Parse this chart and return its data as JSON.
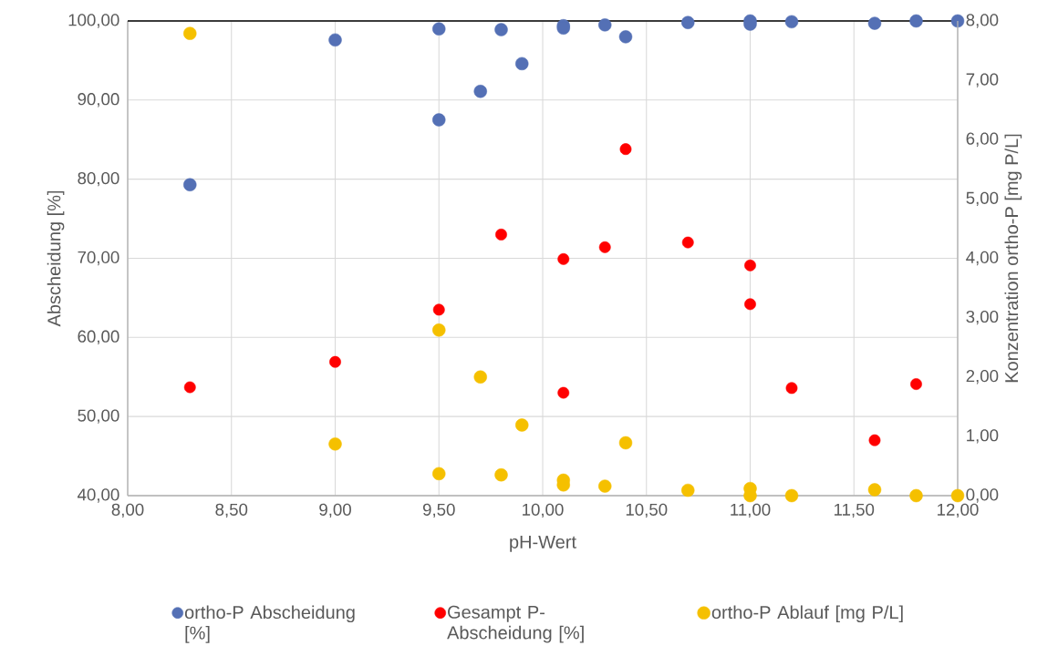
{
  "chart_data": {
    "type": "scatter",
    "xlabel": "pH-Wert",
    "ylabel": "Abscheidung [%]",
    "y2label": "Konzentration ortho-P [mg P/L]",
    "xlim": [
      8,
      12
    ],
    "ylim": [
      40,
      100
    ],
    "y2lim": [
      0,
      8
    ],
    "xticks": [
      {
        "value": 8,
        "label": "8,00"
      },
      {
        "value": 8.5,
        "label": "8,50"
      },
      {
        "value": 9,
        "label": "9,00"
      },
      {
        "value": 9.5,
        "label": "9,50"
      },
      {
        "value": 10,
        "label": "10,00"
      },
      {
        "value": 10.5,
        "label": "10,50"
      },
      {
        "value": 11,
        "label": "11,00"
      },
      {
        "value": 11.5,
        "label": "11,50"
      },
      {
        "value": 12,
        "label": "12,00"
      }
    ],
    "yticks": [
      {
        "value": 40,
        "label": "40,00"
      },
      {
        "value": 50,
        "label": "50,00"
      },
      {
        "value": 60,
        "label": "60,00"
      },
      {
        "value": 70,
        "label": "70,00"
      },
      {
        "value": 80,
        "label": "80,00"
      },
      {
        "value": 90,
        "label": "90,00"
      },
      {
        "value": 100,
        "label": "100,00"
      }
    ],
    "y2ticks": [
      {
        "value": 0,
        "label": "0,00"
      },
      {
        "value": 1,
        "label": "1,00"
      },
      {
        "value": 2,
        "label": "2,00"
      },
      {
        "value": 3,
        "label": "3,00"
      },
      {
        "value": 4,
        "label": "4,00"
      },
      {
        "value": 5,
        "label": "5,00"
      },
      {
        "value": 6,
        "label": "6,00"
      },
      {
        "value": 7,
        "label": "7,00"
      },
      {
        "value": 8,
        "label": "8,00"
      }
    ],
    "grid": true,
    "legend": "bottom",
    "marker": "circle",
    "series": [
      {
        "name": "ortho-P Abscheidung [%]",
        "color": "#5470b5",
        "x": [
          8.3,
          9.0,
          9.5,
          9.5,
          9.7,
          9.8,
          9.9,
          10.1,
          10.1,
          10.3,
          10.4,
          10.7,
          11.0,
          11.0,
          11.2,
          11.6,
          11.8,
          12.0
        ],
        "values": [
          79.3,
          97.6,
          99.0,
          87.5,
          91.1,
          98.9,
          94.6,
          99.4,
          99.1,
          99.5,
          98.0,
          99.8,
          100.0,
          99.6,
          99.9,
          99.7,
          100.0,
          100.0
        ]
      },
      {
        "name": "Gesampt P-Abscheidung [%]",
        "color": "#ff0000",
        "x": [
          8.3,
          9.0,
          9.5,
          9.8,
          10.1,
          10.1,
          10.3,
          10.4,
          10.7,
          11.0,
          11.0,
          11.2,
          11.6,
          11.8
        ],
        "values": [
          53.7,
          56.9,
          63.5,
          73.0,
          69.9,
          53.0,
          71.4,
          83.8,
          72.0,
          69.1,
          64.2,
          53.6,
          47.0,
          54.1
        ]
      },
      {
        "name": "ortho-P Ablauf [mg P/L]",
        "color": "#f5c000",
        "axis": "y2",
        "x": [
          8.3,
          9.0,
          9.5,
          9.5,
          9.7,
          9.8,
          9.9,
          10.1,
          10.1,
          10.3,
          10.4,
          10.7,
          11.0,
          11.0,
          11.2,
          11.6,
          11.8,
          12.0
        ],
        "values": [
          7.79,
          0.87,
          2.79,
          0.37,
          2.0,
          0.35,
          1.19,
          0.26,
          0.18,
          0.16,
          0.89,
          0.09,
          0.12,
          0.0,
          0.0,
          0.1,
          0.0,
          0.0
        ]
      }
    ]
  }
}
